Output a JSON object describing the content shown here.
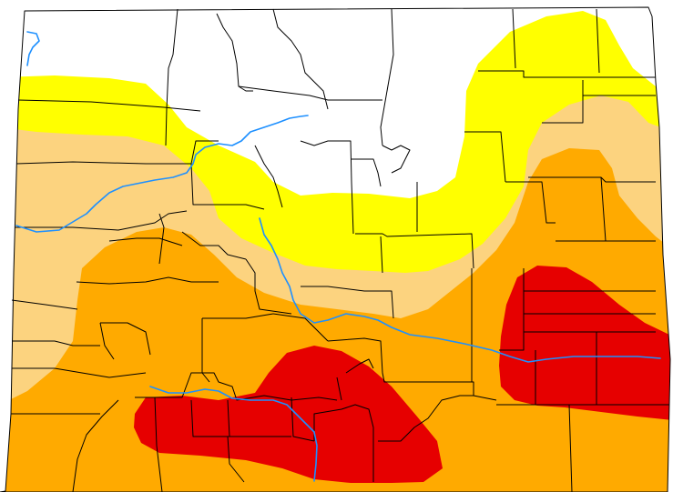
{
  "map": {
    "region": "Colorado",
    "legend_visible": false,
    "categories": [
      {
        "id": "none",
        "color": "#ffffff"
      },
      {
        "id": "d0",
        "color": "#ffff00"
      },
      {
        "id": "d1",
        "color": "#fcd37f"
      },
      {
        "id": "d2",
        "color": "#ffaa00"
      },
      {
        "id": "d3",
        "color": "#e60000"
      }
    ],
    "outline_color": "#000000",
    "river_color": "#1e90ff"
  }
}
